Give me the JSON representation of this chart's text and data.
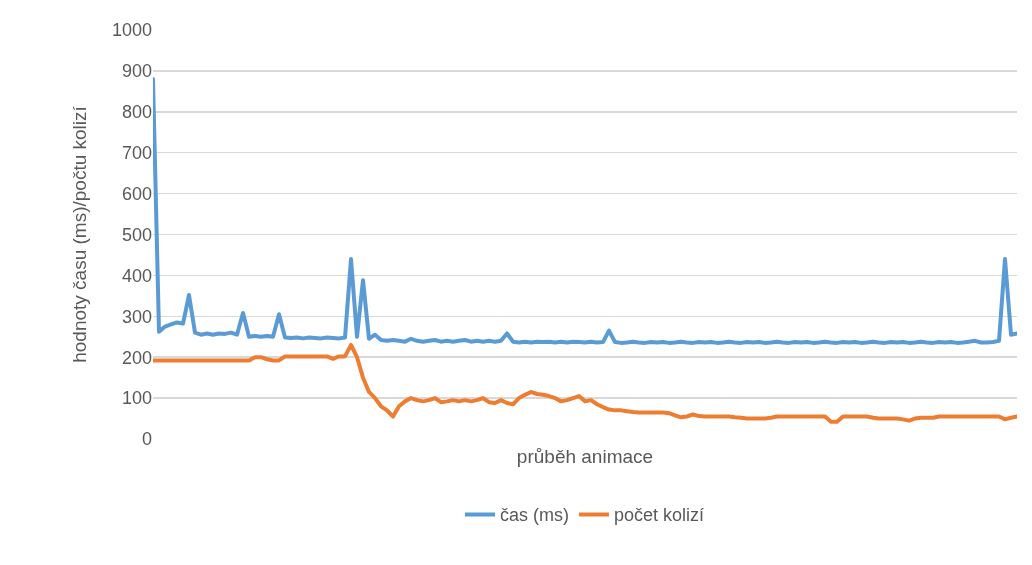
{
  "chart_data": {
    "type": "line",
    "xlabel": "průběh animace",
    "ylabel": "hodnoty času (ms)/počtu kolizí",
    "ylim": [
      0,
      1000
    ],
    "yticks": [
      0,
      100,
      200,
      300,
      400,
      500,
      600,
      700,
      800,
      900,
      1000
    ],
    "grid": "y",
    "legend": "bottom",
    "marker": "none",
    "line_style": "solid",
    "categories": [
      null,
      null,
      null,
      null,
      null,
      null,
      null,
      null,
      null,
      null,
      null,
      null,
      null,
      null,
      null,
      null,
      null,
      null,
      null,
      null,
      null,
      null,
      null,
      null,
      null,
      null,
      null,
      null,
      null,
      null,
      null,
      null,
      null,
      null,
      null,
      null,
      null,
      null,
      null,
      null,
      null,
      null,
      null,
      null,
      null,
      null,
      null,
      null,
      null,
      null,
      null,
      null,
      null,
      null,
      null,
      null,
      null,
      null,
      null,
      null,
      null,
      null,
      null,
      null,
      null,
      null,
      null,
      null,
      null,
      null,
      null,
      null,
      null,
      null,
      null,
      null,
      null,
      null,
      null,
      null,
      null,
      null,
      null,
      null,
      null,
      null,
      null,
      null,
      null,
      null,
      null,
      null,
      null,
      null,
      null,
      null,
      null,
      null,
      null,
      null,
      null,
      null,
      null,
      null,
      null,
      null,
      null,
      null,
      null,
      null,
      null,
      null,
      null,
      null,
      null,
      null,
      null,
      null,
      null,
      null,
      null,
      null,
      null,
      null,
      null,
      null,
      null,
      null,
      null,
      null,
      null,
      null,
      null,
      null,
      null,
      null,
      null,
      null,
      null,
      null,
      null,
      null,
      null,
      null,
      null
    ],
    "series": [
      {
        "name": "čas (ms)",
        "color": "#5b9bd5",
        "values": [
          880,
          262,
          275,
          280,
          285,
          282,
          352,
          260,
          255,
          258,
          255,
          258,
          257,
          260,
          255,
          308,
          250,
          252,
          250,
          252,
          250,
          305,
          248,
          247,
          248,
          246,
          248,
          247,
          246,
          248,
          247,
          246,
          248,
          440,
          250,
          388,
          245,
          255,
          242,
          240,
          242,
          240,
          238,
          245,
          240,
          238,
          240,
          242,
          238,
          240,
          238,
          240,
          242,
          238,
          240,
          238,
          240,
          238,
          240,
          258,
          238,
          236,
          238,
          236,
          238,
          237,
          238,
          236,
          238,
          236,
          238,
          237,
          236,
          238,
          236,
          237,
          265,
          237,
          235,
          236,
          238,
          236,
          235,
          237,
          236,
          237,
          235,
          236,
          238,
          236,
          235,
          237,
          236,
          237,
          235,
          236,
          238,
          236,
          235,
          237,
          236,
          237,
          235,
          236,
          238,
          236,
          235,
          237,
          236,
          237,
          235,
          236,
          238,
          236,
          235,
          237,
          236,
          237,
          235,
          236,
          238,
          236,
          235,
          237,
          236,
          237,
          235,
          236,
          238,
          236,
          235,
          237,
          236,
          237,
          235,
          236,
          238,
          240,
          236,
          236,
          237,
          240,
          440,
          255,
          258
        ]
      },
      {
        "name": "počet kolizí",
        "color": "#ed7d31",
        "values": [
          192,
          192,
          192,
          192,
          192,
          192,
          192,
          192,
          192,
          192,
          192,
          192,
          192,
          192,
          192,
          192,
          192,
          200,
          200,
          195,
          192,
          192,
          202,
          202,
          202,
          202,
          202,
          202,
          202,
          202,
          196,
          202,
          202,
          230,
          200,
          150,
          115,
          100,
          80,
          70,
          55,
          80,
          92,
          100,
          95,
          92,
          95,
          100,
          90,
          92,
          95,
          92,
          95,
          92,
          95,
          100,
          90,
          88,
          95,
          88,
          85,
          100,
          108,
          115,
          110,
          108,
          105,
          100,
          92,
          95,
          100,
          105,
          92,
          95,
          85,
          78,
          72,
          70,
          70,
          68,
          66,
          65,
          65,
          65,
          65,
          65,
          63,
          58,
          53,
          55,
          60,
          56,
          55,
          55,
          55,
          55,
          55,
          53,
          52,
          50,
          50,
          50,
          50,
          52,
          55,
          55,
          55,
          55,
          55,
          55,
          55,
          55,
          55,
          42,
          42,
          55,
          55,
          55,
          55,
          55,
          52,
          50,
          50,
          50,
          50,
          48,
          45,
          50,
          52,
          52,
          52,
          55,
          55,
          55,
          55,
          55,
          55,
          55,
          55,
          55,
          55,
          55,
          48,
          52,
          55
        ]
      }
    ]
  }
}
